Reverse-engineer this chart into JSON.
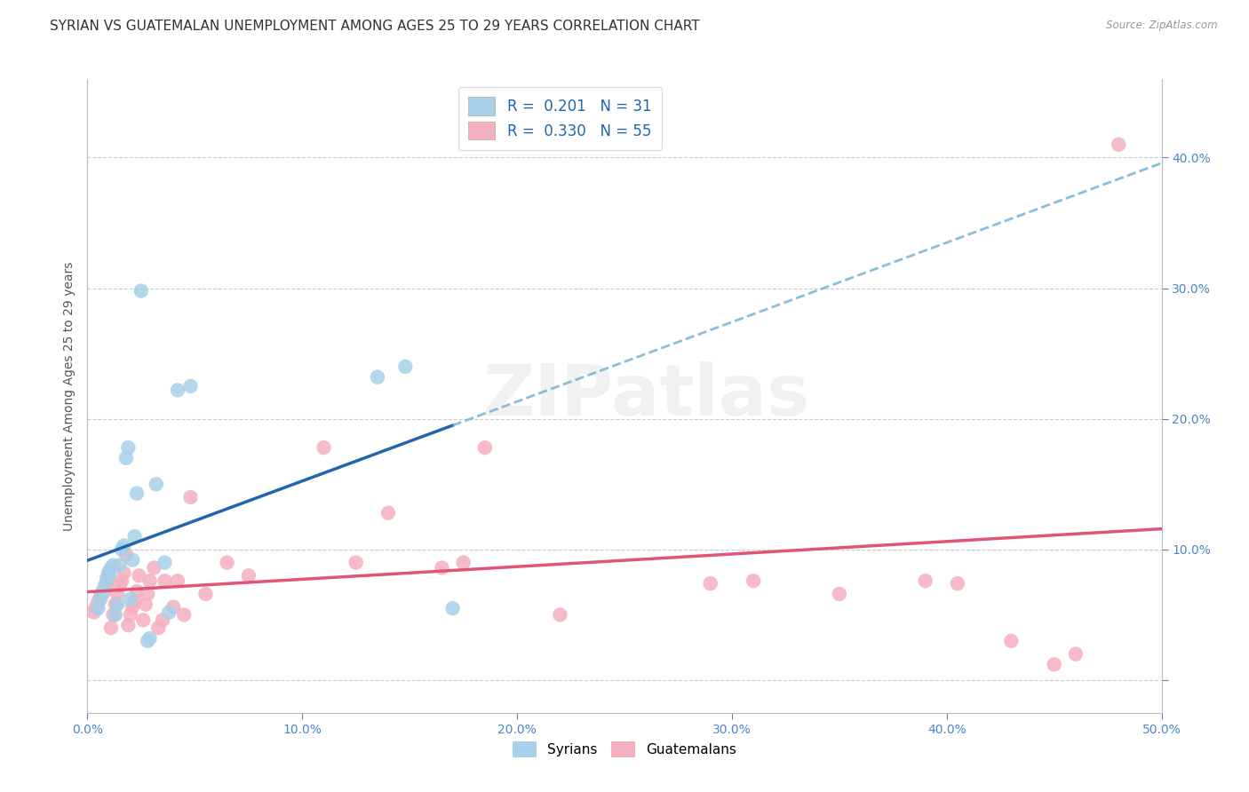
{
  "title": "SYRIAN VS GUATEMALAN UNEMPLOYMENT AMONG AGES 25 TO 29 YEARS CORRELATION CHART",
  "source": "Source: ZipAtlas.com",
  "ylabel": "Unemployment Among Ages 25 to 29 years",
  "xlim": [
    0.0,
    0.5
  ],
  "ylim": [
    -0.025,
    0.46
  ],
  "xticks": [
    0.0,
    0.1,
    0.2,
    0.3,
    0.4,
    0.5
  ],
  "yticks": [
    0.0,
    0.1,
    0.2,
    0.3,
    0.4
  ],
  "xticklabels": [
    "0.0%",
    "10.0%",
    "20.0%",
    "30.0%",
    "40.0%",
    "50.0%"
  ],
  "yticklabels": [
    "",
    "10.0%",
    "20.0%",
    "30.0%",
    "40.0%"
  ],
  "syrians_x": [
    0.005,
    0.006,
    0.007,
    0.008,
    0.009,
    0.01,
    0.01,
    0.011,
    0.012,
    0.013,
    0.014,
    0.015,
    0.016,
    0.017,
    0.018,
    0.019,
    0.02,
    0.021,
    0.022,
    0.023,
    0.025,
    0.028,
    0.029,
    0.032,
    0.036,
    0.038,
    0.042,
    0.048,
    0.135,
    0.148,
    0.17
  ],
  "syrians_y": [
    0.055,
    0.062,
    0.068,
    0.072,
    0.078,
    0.08,
    0.083,
    0.086,
    0.088,
    0.05,
    0.058,
    0.088,
    0.1,
    0.103,
    0.17,
    0.178,
    0.062,
    0.092,
    0.11,
    0.143,
    0.298,
    0.03,
    0.032,
    0.15,
    0.09,
    0.052,
    0.222,
    0.225,
    0.232,
    0.24,
    0.055
  ],
  "guatemalans_x": [
    0.003,
    0.004,
    0.005,
    0.006,
    0.007,
    0.008,
    0.009,
    0.009,
    0.01,
    0.01,
    0.011,
    0.012,
    0.013,
    0.014,
    0.015,
    0.016,
    0.017,
    0.018,
    0.019,
    0.02,
    0.021,
    0.022,
    0.023,
    0.024,
    0.026,
    0.027,
    0.028,
    0.029,
    0.031,
    0.033,
    0.035,
    0.036,
    0.04,
    0.042,
    0.045,
    0.048,
    0.055,
    0.065,
    0.075,
    0.11,
    0.125,
    0.14,
    0.165,
    0.175,
    0.185,
    0.22,
    0.29,
    0.31,
    0.35,
    0.39,
    0.405,
    0.43,
    0.45,
    0.46,
    0.48
  ],
  "guatemalans_y": [
    0.052,
    0.056,
    0.06,
    0.064,
    0.066,
    0.068,
    0.072,
    0.075,
    0.078,
    0.082,
    0.04,
    0.05,
    0.058,
    0.066,
    0.072,
    0.076,
    0.082,
    0.096,
    0.042,
    0.05,
    0.056,
    0.06,
    0.068,
    0.08,
    0.046,
    0.058,
    0.066,
    0.076,
    0.086,
    0.04,
    0.046,
    0.076,
    0.056,
    0.076,
    0.05,
    0.14,
    0.066,
    0.09,
    0.08,
    0.178,
    0.09,
    0.128,
    0.086,
    0.09,
    0.178,
    0.05,
    0.074,
    0.076,
    0.066,
    0.076,
    0.074,
    0.03,
    0.012,
    0.02,
    0.41
  ],
  "syrian_dot_color": "#a8d0e8",
  "guatemalan_dot_color": "#f5b0c0",
  "syrian_line_solid_color": "#2166ac",
  "syrian_line_dash_color": "#6aafd4",
  "guatemalan_line_color": "#e05575",
  "R_syrian": 0.201,
  "N_syrian": 31,
  "R_guatemalan": 0.33,
  "N_guatemalan": 55,
  "legend_label_syrian": "Syrians",
  "legend_label_guatemalan": "Guatemalans",
  "watermark": "ZIPatlas",
  "title_fontsize": 11,
  "label_fontsize": 10,
  "tick_fontsize": 10
}
